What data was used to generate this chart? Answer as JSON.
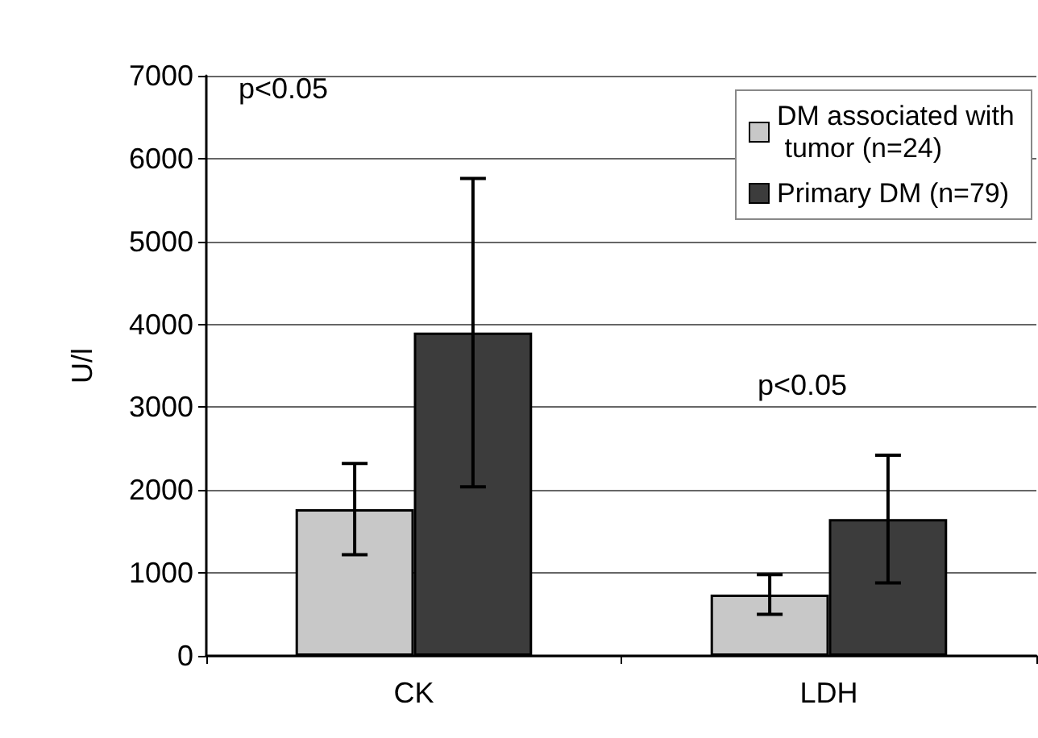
{
  "chart_data": {
    "type": "bar",
    "ylabel": "U/l",
    "categories": [
      "CK",
      "LDH"
    ],
    "series": [
      {
        "name": "DM associated with tumor (n=24)",
        "color": "#c8c8c8",
        "values": [
          1770,
          740
        ],
        "errors": [
          550,
          240
        ]
      },
      {
        "name": "Primary DM (n=79)",
        "color": "#3c3c3c",
        "values": [
          3900,
          1650
        ],
        "errors": [
          1860,
          770
        ]
      }
    ],
    "annotations": [
      "p<0.05",
      "p<0.05"
    ],
    "ylim": [
      0,
      7000
    ],
    "yticks": [
      0,
      1000,
      2000,
      3000,
      4000,
      5000,
      6000,
      7000
    ],
    "grid": "y",
    "legend": "top right"
  }
}
